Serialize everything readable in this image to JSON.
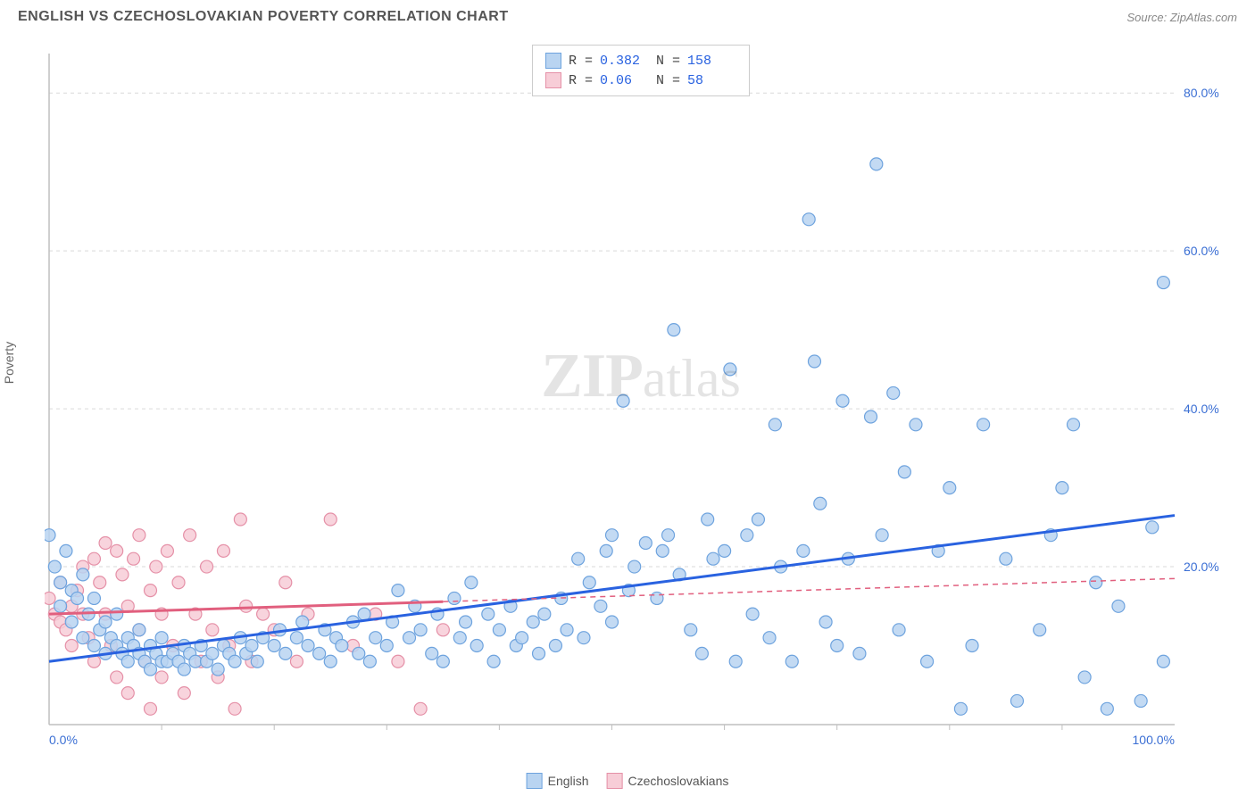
{
  "title": "ENGLISH VS CZECHOSLOVAKIAN POVERTY CORRELATION CHART",
  "source": "Source: ZipAtlas.com",
  "ylabel": "Poverty",
  "watermark_bold": "ZIP",
  "watermark_light": "atlas",
  "chart": {
    "type": "scatter",
    "xlim": [
      0,
      100
    ],
    "ylim": [
      0,
      85
    ],
    "x_ticks": [
      0,
      100
    ],
    "x_tick_labels": [
      "0.0%",
      "100.0%"
    ],
    "x_minor_ticks": [
      10,
      20,
      30,
      40,
      50,
      60,
      70,
      80,
      90
    ],
    "y_ticks": [
      20,
      40,
      60,
      80
    ],
    "y_tick_labels": [
      "20.0%",
      "40.0%",
      "60.0%",
      "80.0%"
    ],
    "background_color": "#ffffff",
    "grid_color": "#d9d9d9",
    "axis_color": "#bfbfbf",
    "marker_radius": 7,
    "marker_stroke_width": 1.2,
    "trend_line_width": 3,
    "series": [
      {
        "name": "English",
        "fill": "#b9d4f1",
        "stroke": "#6ea3de",
        "line_color": "#2962e0",
        "line_dash": "none",
        "r": 0.382,
        "n": 158,
        "trend": {
          "x1": 0,
          "y1": 8,
          "x2": 100,
          "y2": 26.5
        },
        "points": [
          [
            0,
            24
          ],
          [
            0.5,
            20
          ],
          [
            1,
            18
          ],
          [
            1,
            15
          ],
          [
            1.5,
            22
          ],
          [
            2,
            17
          ],
          [
            2,
            13
          ],
          [
            2.5,
            16
          ],
          [
            3,
            19
          ],
          [
            3,
            11
          ],
          [
            3.5,
            14
          ],
          [
            4,
            16
          ],
          [
            4,
            10
          ],
          [
            4.5,
            12
          ],
          [
            5,
            13
          ],
          [
            5,
            9
          ],
          [
            5.5,
            11
          ],
          [
            6,
            10
          ],
          [
            6,
            14
          ],
          [
            6.5,
            9
          ],
          [
            7,
            11
          ],
          [
            7,
            8
          ],
          [
            7.5,
            10
          ],
          [
            8,
            9
          ],
          [
            8,
            12
          ],
          [
            8.5,
            8
          ],
          [
            9,
            10
          ],
          [
            9,
            7
          ],
          [
            9.5,
            9
          ],
          [
            10,
            8
          ],
          [
            10,
            11
          ],
          [
            10.5,
            8
          ],
          [
            11,
            9
          ],
          [
            11.5,
            8
          ],
          [
            12,
            10
          ],
          [
            12,
            7
          ],
          [
            12.5,
            9
          ],
          [
            13,
            8
          ],
          [
            13.5,
            10
          ],
          [
            14,
            8
          ],
          [
            14.5,
            9
          ],
          [
            15,
            7
          ],
          [
            15.5,
            10
          ],
          [
            16,
            9
          ],
          [
            16.5,
            8
          ],
          [
            17,
            11
          ],
          [
            17.5,
            9
          ],
          [
            18,
            10
          ],
          [
            18.5,
            8
          ],
          [
            19,
            11
          ],
          [
            20,
            10
          ],
          [
            20.5,
            12
          ],
          [
            21,
            9
          ],
          [
            22,
            11
          ],
          [
            22.5,
            13
          ],
          [
            23,
            10
          ],
          [
            24,
            9
          ],
          [
            24.5,
            12
          ],
          [
            25,
            8
          ],
          [
            25.5,
            11
          ],
          [
            26,
            10
          ],
          [
            27,
            13
          ],
          [
            27.5,
            9
          ],
          [
            28,
            14
          ],
          [
            28.5,
            8
          ],
          [
            29,
            11
          ],
          [
            30,
            10
          ],
          [
            30.5,
            13
          ],
          [
            31,
            17
          ],
          [
            32,
            11
          ],
          [
            32.5,
            15
          ],
          [
            33,
            12
          ],
          [
            34,
            9
          ],
          [
            34.5,
            14
          ],
          [
            35,
            8
          ],
          [
            36,
            16
          ],
          [
            36.5,
            11
          ],
          [
            37,
            13
          ],
          [
            37.5,
            18
          ],
          [
            38,
            10
          ],
          [
            39,
            14
          ],
          [
            39.5,
            8
          ],
          [
            40,
            12
          ],
          [
            41,
            15
          ],
          [
            41.5,
            10
          ],
          [
            42,
            11
          ],
          [
            43,
            13
          ],
          [
            43.5,
            9
          ],
          [
            44,
            14
          ],
          [
            45,
            10
          ],
          [
            45.5,
            16
          ],
          [
            46,
            12
          ],
          [
            47,
            21
          ],
          [
            47.5,
            11
          ],
          [
            48,
            18
          ],
          [
            49,
            15
          ],
          [
            49.5,
            22
          ],
          [
            50,
            13
          ],
          [
            50,
            24
          ],
          [
            51,
            41
          ],
          [
            51.5,
            17
          ],
          [
            52,
            20
          ],
          [
            53,
            23
          ],
          [
            54,
            16
          ],
          [
            54.5,
            22
          ],
          [
            55,
            24
          ],
          [
            55.5,
            50
          ],
          [
            56,
            19
          ],
          [
            57,
            12
          ],
          [
            58,
            9
          ],
          [
            58.5,
            26
          ],
          [
            59,
            21
          ],
          [
            60,
            22
          ],
          [
            60.5,
            45
          ],
          [
            61,
            8
          ],
          [
            62,
            24
          ],
          [
            62.5,
            14
          ],
          [
            63,
            26
          ],
          [
            64,
            11
          ],
          [
            64.5,
            38
          ],
          [
            65,
            20
          ],
          [
            66,
            8
          ],
          [
            67,
            22
          ],
          [
            67.5,
            64
          ],
          [
            68,
            46
          ],
          [
            68.5,
            28
          ],
          [
            69,
            13
          ],
          [
            70,
            10
          ],
          [
            70.5,
            41
          ],
          [
            71,
            21
          ],
          [
            72,
            9
          ],
          [
            73,
            39
          ],
          [
            73.5,
            71
          ],
          [
            74,
            24
          ],
          [
            75,
            42
          ],
          [
            75.5,
            12
          ],
          [
            76,
            32
          ],
          [
            77,
            38
          ],
          [
            78,
            8
          ],
          [
            79,
            22
          ],
          [
            80,
            30
          ],
          [
            81,
            2
          ],
          [
            82,
            10
          ],
          [
            83,
            38
          ],
          [
            85,
            21
          ],
          [
            86,
            3
          ],
          [
            88,
            12
          ],
          [
            89,
            24
          ],
          [
            90,
            30
          ],
          [
            91,
            38
          ],
          [
            92,
            6
          ],
          [
            93,
            18
          ],
          [
            94,
            2
          ],
          [
            95,
            15
          ],
          [
            97,
            3
          ],
          [
            98,
            25
          ],
          [
            99,
            56
          ],
          [
            99,
            8
          ]
        ]
      },
      {
        "name": "Czechoslovakians",
        "fill": "#f7cdd7",
        "stroke": "#e590a7",
        "line_color": "#e15f7e",
        "line_dash": "6,5",
        "line_solid_until_x": 35,
        "r": 0.06,
        "n": 58,
        "trend": {
          "x1": 0,
          "y1": 14,
          "x2": 100,
          "y2": 18.5
        },
        "points": [
          [
            0,
            16
          ],
          [
            0.5,
            14
          ],
          [
            1,
            13
          ],
          [
            1,
            18
          ],
          [
            1.5,
            12
          ],
          [
            2,
            15
          ],
          [
            2,
            10
          ],
          [
            2.5,
            17
          ],
          [
            3,
            14
          ],
          [
            3,
            20
          ],
          [
            3.5,
            11
          ],
          [
            4,
            21
          ],
          [
            4,
            8
          ],
          [
            4.5,
            18
          ],
          [
            5,
            14
          ],
          [
            5,
            23
          ],
          [
            5.5,
            10
          ],
          [
            6,
            22
          ],
          [
            6,
            6
          ],
          [
            6.5,
            19
          ],
          [
            7,
            15
          ],
          [
            7,
            4
          ],
          [
            7.5,
            21
          ],
          [
            8,
            12
          ],
          [
            8,
            24
          ],
          [
            8.5,
            8
          ],
          [
            9,
            17
          ],
          [
            9,
            2
          ],
          [
            9.5,
            20
          ],
          [
            10,
            14
          ],
          [
            10,
            6
          ],
          [
            10.5,
            22
          ],
          [
            11,
            10
          ],
          [
            11.5,
            18
          ],
          [
            12,
            4
          ],
          [
            12.5,
            24
          ],
          [
            13,
            14
          ],
          [
            13.5,
            8
          ],
          [
            14,
            20
          ],
          [
            14.5,
            12
          ],
          [
            15,
            6
          ],
          [
            15.5,
            22
          ],
          [
            16,
            10
          ],
          [
            16.5,
            2
          ],
          [
            17,
            26
          ],
          [
            17.5,
            15
          ],
          [
            18,
            8
          ],
          [
            19,
            14
          ],
          [
            20,
            12
          ],
          [
            21,
            18
          ],
          [
            22,
            8
          ],
          [
            23,
            14
          ],
          [
            25,
            26
          ],
          [
            27,
            10
          ],
          [
            29,
            14
          ],
          [
            31,
            8
          ],
          [
            33,
            2
          ],
          [
            35,
            12
          ]
        ]
      }
    ]
  },
  "legend_bottom": [
    {
      "label": "English",
      "fill": "#b9d4f1",
      "stroke": "#6ea3de"
    },
    {
      "label": "Czechoslovakians",
      "fill": "#f7cdd7",
      "stroke": "#e590a7"
    }
  ]
}
